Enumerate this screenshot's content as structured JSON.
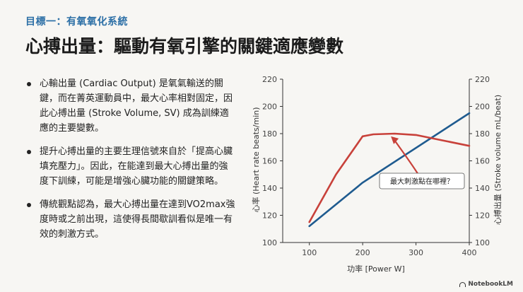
{
  "header": {
    "subtitle": "目標一：有氧氧化系統",
    "title": "心搏出量：驅動有氧引擎的關鍵適應變數"
  },
  "bullets": [
    "心輸出量 (Cardiac Output) 是氧氣輸送的關鍵，而在菁英運動員中，最大心率相對固定，因此心搏出量 (Stroke Volume, SV) 成為訓練適應的主要變數。",
    "提升心搏出量的主要生理信號來自於「提高心臟填充壓力」。因此，在能達到最大心搏出量的強度下訓練，可能是增強心臟功能的關鍵策略。",
    "傳統觀點認為，最大心搏出量在達到VO2max強度時或之前出現，這使得長間歇訓看似是唯一有效的刺激方式。"
  ],
  "chart_data": {
    "type": "line",
    "xlabel": "功率 [Power W]",
    "ylabel_left": "心率 (Heart rate beats/min)",
    "ylabel_right": "心搏出量 (Stroke volume mL/beat)",
    "xlim": [
      50,
      400
    ],
    "ylim_left": [
      100,
      220
    ],
    "ylim_right": [
      100,
      220
    ],
    "x_ticks": [
      100,
      200,
      300,
      400
    ],
    "y_ticks": [
      100,
      120,
      140,
      160,
      180,
      200,
      220
    ],
    "grid": false,
    "series": [
      {
        "name": "heart-rate",
        "axis": "left",
        "color": "#1f5b8f",
        "x": [
          100,
          200,
          400
        ],
        "y": [
          112,
          144,
          195
        ]
      },
      {
        "name": "stroke-volume",
        "axis": "right",
        "color": "#c8413a",
        "x": [
          100,
          150,
          200,
          220,
          260,
          300,
          350,
          400
        ],
        "y": [
          115,
          150,
          178,
          179.5,
          180,
          179,
          175,
          171
        ]
      }
    ],
    "annotation": {
      "text": "最大刺激點在哪裡？",
      "arrow_color": "#c8413a",
      "points_to": [
        253,
        178
      ]
    }
  },
  "footer": {
    "brand": "NotebookLM"
  }
}
